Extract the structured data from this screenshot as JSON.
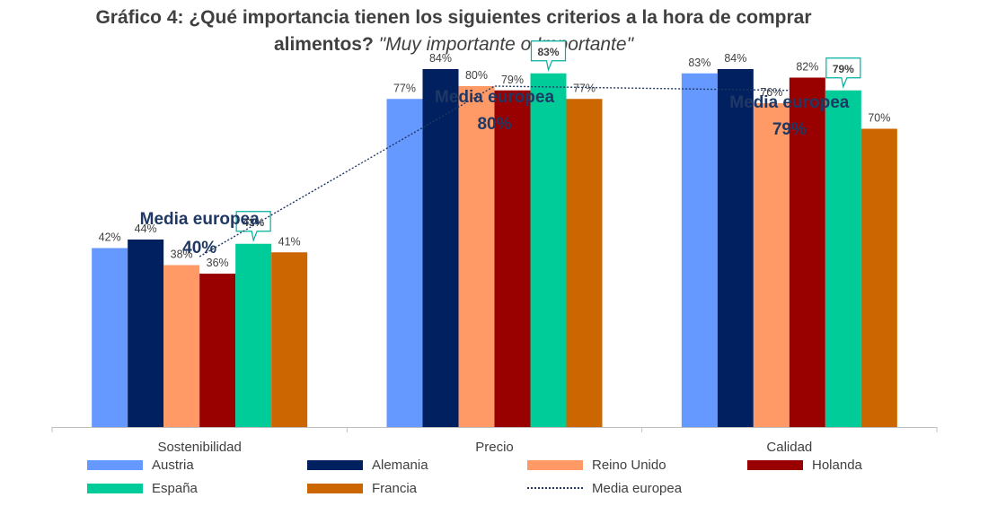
{
  "title": {
    "line1": "Gráfico 4: ¿Qué importancia tienen los siguientes criterios a la hora de comprar",
    "line2_bold": "alimentos?",
    "line2_italic": "\"Muy importante o Importante\""
  },
  "chart_data": {
    "type": "bar",
    "categories": [
      "Sostenibilidad",
      "Precio",
      "Calidad"
    ],
    "series": [
      {
        "name": "Austria",
        "color": "#6699ff",
        "values": [
          42,
          77,
          83
        ]
      },
      {
        "name": "Alemania",
        "color": "#002060",
        "values": [
          44,
          84,
          84
        ]
      },
      {
        "name": "Reino Unido",
        "color": "#ff9966",
        "values": [
          38,
          80,
          76
        ]
      },
      {
        "name": "Holanda",
        "color": "#990000",
        "values": [
          36,
          79,
          82
        ]
      },
      {
        "name": "España",
        "color": "#00cc99",
        "values": [
          43,
          83,
          79
        ]
      },
      {
        "name": "Francia",
        "color": "#cc6600",
        "values": [
          41,
          77,
          70
        ]
      }
    ],
    "value_labels": [
      [
        "42%",
        "77%",
        "83%"
      ],
      [
        "44%",
        "84%",
        "84%"
      ],
      [
        "38%",
        "80%",
        "76%"
      ],
      [
        "36%",
        "79%",
        "82%"
      ],
      [
        "43%",
        "83%",
        "79%"
      ],
      [
        "41%",
        "77%",
        "70%"
      ]
    ],
    "highlighted_series": "España",
    "line_series": {
      "name": "Media europea",
      "values": [
        40,
        80,
        79
      ],
      "color": "#1f3864",
      "style": "dotted"
    },
    "annotations": [
      {
        "line1": "Media europea",
        "line2": "40%"
      },
      {
        "line1": "Media europea",
        "line2": "80%"
      },
      {
        "line1": "Media europea",
        "line2": "79%"
      }
    ],
    "ylim": [
      0,
      100
    ],
    "grid": false,
    "legend_position": "bottom",
    "xlabel": "",
    "ylabel": ""
  }
}
